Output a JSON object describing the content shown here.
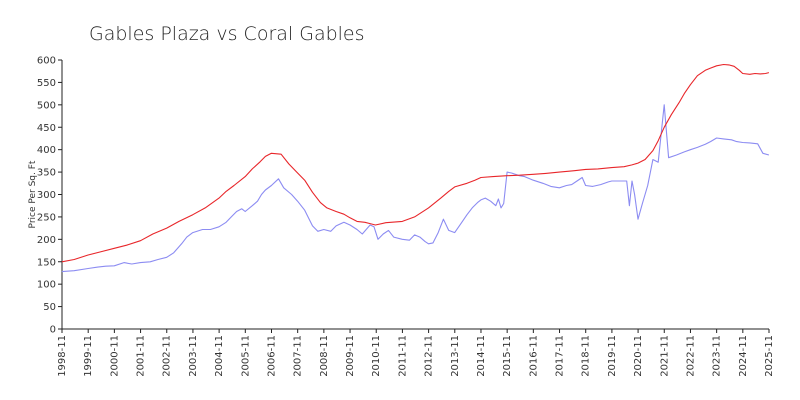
{
  "chart_data": {
    "type": "line",
    "title": "Gables Plaza vs Coral Gables",
    "xlabel": "",
    "ylabel": "Price Per Sq. Ft",
    "ylim": [
      0,
      600
    ],
    "yticks": [
      0,
      50,
      100,
      150,
      200,
      250,
      300,
      350,
      400,
      450,
      500,
      550,
      600
    ],
    "xlim": [
      1998.833,
      2025.833
    ],
    "xticks": [
      "1998-11",
      "1999-11",
      "2000-11",
      "2001-11",
      "2002-11",
      "2003-11",
      "2004-11",
      "2005-11",
      "2006-11",
      "2007-11",
      "2008-11",
      "2009-11",
      "2010-11",
      "2011-11",
      "2012-11",
      "2013-11",
      "2014-11",
      "2015-11",
      "2016-11",
      "2017-11",
      "2018-11",
      "2019-11",
      "2020-11",
      "2021-11",
      "2022-11",
      "2023-11",
      "2024-11",
      "2025-11"
    ],
    "grid": false,
    "series": [
      {
        "name": "Coral Gables",
        "color": "#e8262a",
        "x": [
          1998.83,
          1999.3,
          1999.83,
          2000.3,
          2000.83,
          2001.3,
          2001.83,
          2002.3,
          2002.83,
          2003.3,
          2003.83,
          2004.3,
          2004.83,
          2005.1,
          2005.4,
          2005.83,
          2006.1,
          2006.4,
          2006.6,
          2006.83,
          2007.2,
          2007.5,
          2007.83,
          2008.1,
          2008.4,
          2008.7,
          2008.95,
          2009.3,
          2009.6,
          2009.83,
          2010.1,
          2010.4,
          2010.6,
          2010.8,
          2011.2,
          2011.83,
          2012.3,
          2012.83,
          2013.3,
          2013.6,
          2013.83,
          2014.3,
          2014.6,
          2014.83,
          2015.3,
          2015.83,
          2016.3,
          2016.83,
          2017.3,
          2017.83,
          2018.2,
          2018.4,
          2018.7,
          2018.83,
          2019.3,
          2019.83,
          2020.3,
          2020.6,
          2020.83,
          2021.1,
          2021.4,
          2021.6,
          2021.83,
          2022.1,
          2022.4,
          2022.6,
          2022.83,
          2023.1,
          2023.4,
          2023.6,
          2023.83,
          2024.1,
          2024.3,
          2024.5,
          2024.7,
          2024.83,
          2025.1,
          2025.3,
          2025.5,
          2025.7,
          2025.83
        ],
        "values": [
          150,
          155,
          165,
          172,
          180,
          187,
          197,
          212,
          225,
          240,
          255,
          270,
          292,
          307,
          320,
          340,
          357,
          373,
          385,
          392,
          390,
          368,
          348,
          332,
          305,
          282,
          270,
          262,
          256,
          248,
          240,
          238,
          235,
          232,
          237,
          240,
          250,
          270,
          292,
          307,
          317,
          325,
          332,
          338,
          340,
          342,
          343,
          345,
          347,
          350,
          352,
          353,
          355,
          356,
          357,
          360,
          362,
          366,
          370,
          378,
          398,
          420,
          450,
          478,
          505,
          525,
          545,
          565,
          577,
          582,
          587,
          590,
          589,
          586,
          577,
          570,
          568,
          570,
          569,
          570,
          572
        ]
      },
      {
        "name": "Gables Plaza",
        "color": "#8c8cf2",
        "x": [
          1998.83,
          1999.3,
          1999.83,
          2000.2,
          2000.5,
          2000.83,
          2001.2,
          2001.5,
          2001.83,
          2002.2,
          2002.5,
          2002.83,
          2003.1,
          2003.4,
          2003.6,
          2003.83,
          2004.2,
          2004.5,
          2004.83,
          2005.1,
          2005.3,
          2005.5,
          2005.7,
          2005.83,
          2006.1,
          2006.3,
          2006.45,
          2006.6,
          2006.83,
          2007.1,
          2007.3,
          2007.6,
          2007.83,
          2008.1,
          2008.4,
          2008.6,
          2008.83,
          2009.1,
          2009.3,
          2009.6,
          2009.83,
          2010.1,
          2010.3,
          2010.45,
          2010.6,
          2010.75,
          2010.9,
          2011.1,
          2011.3,
          2011.5,
          2011.83,
          2012.1,
          2012.3,
          2012.5,
          2012.7,
          2012.83,
          2013.0,
          2013.2,
          2013.4,
          2013.6,
          2013.83,
          2014.1,
          2014.3,
          2014.5,
          2014.7,
          2014.83,
          2015.0,
          2015.2,
          2015.4,
          2015.5,
          2015.6,
          2015.7,
          2015.83,
          2016.0,
          2016.3,
          2016.5,
          2016.83,
          2017.2,
          2017.5,
          2017.83,
          2018.1,
          2018.3,
          2018.5,
          2018.7,
          2018.83,
          2019.1,
          2019.4,
          2019.7,
          2019.83,
          2020.2,
          2020.4,
          2020.5,
          2020.6,
          2020.7,
          2020.83,
          2021.0,
          2021.2,
          2021.4,
          2021.6,
          2021.83,
          2022.0,
          2022.3,
          2022.6,
          2022.83,
          2023.1,
          2023.4,
          2023.6,
          2023.83,
          2024.1,
          2024.4,
          2024.6,
          2024.83,
          2025.1,
          2025.4,
          2025.6,
          2025.83
        ],
        "values": [
          128,
          130,
          135,
          138,
          140,
          141,
          148,
          145,
          148,
          150,
          155,
          160,
          170,
          190,
          205,
          215,
          222,
          222,
          228,
          238,
          250,
          262,
          268,
          262,
          275,
          285,
          300,
          310,
          320,
          335,
          315,
          300,
          285,
          265,
          230,
          218,
          222,
          218,
          230,
          238,
          232,
          222,
          212,
          222,
          232,
          228,
          200,
          212,
          220,
          205,
          200,
          198,
          210,
          205,
          195,
          190,
          192,
          215,
          245,
          220,
          215,
          238,
          255,
          270,
          282,
          288,
          292,
          285,
          275,
          290,
          270,
          280,
          350,
          348,
          342,
          340,
          332,
          325,
          318,
          315,
          320,
          322,
          330,
          338,
          320,
          318,
          322,
          328,
          330,
          330,
          330,
          275,
          330,
          300,
          245,
          280,
          320,
          378,
          372,
          500,
          382,
          388,
          395,
          400,
          405,
          412,
          418,
          426,
          424,
          422,
          418,
          416,
          415,
          413,
          392,
          388
        ]
      }
    ]
  }
}
